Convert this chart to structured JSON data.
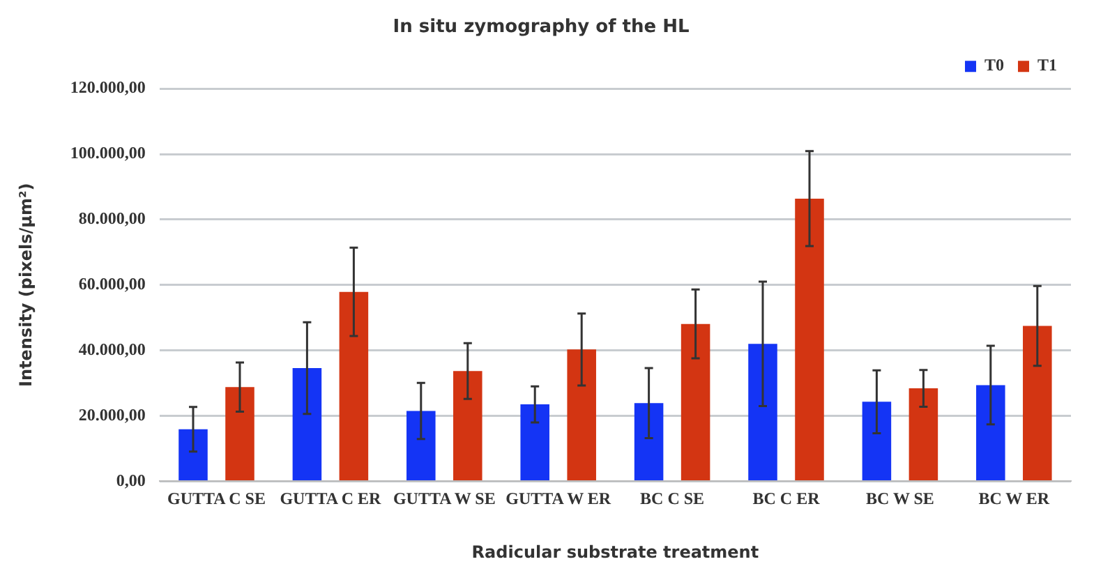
{
  "chart_data": {
    "type": "bar",
    "title": "In situ zymography of the HL",
    "xlabel": "Radicular substrate treatment",
    "ylabel": "Intensity (pixels/µm²)",
    "categories": [
      "GUTTA C SE",
      "GUTTA C ER",
      "GUTTA W SE",
      "GUTTA W ER",
      "BC C SE",
      "BC C ER",
      "BC W SE",
      "BC W ER"
    ],
    "series": [
      {
        "name": "T0",
        "color": "#1434f5",
        "values": [
          15900,
          34600,
          21500,
          23500,
          23900,
          42000,
          24300,
          29400
        ],
        "errors": [
          6800,
          14000,
          8600,
          5500,
          10700,
          19000,
          9600,
          12000
        ]
      },
      {
        "name": "T1",
        "color": "#d33512",
        "values": [
          28800,
          57900,
          33700,
          40300,
          48100,
          86400,
          28400,
          47500
        ],
        "errors": [
          7500,
          13500,
          8500,
          11000,
          10500,
          14500,
          5600,
          12200
        ]
      }
    ],
    "ylim": [
      0,
      120000
    ],
    "yticks": [
      {
        "value": 0,
        "label": "0,00"
      },
      {
        "value": 20000,
        "label": "20.000,00"
      },
      {
        "value": 40000,
        "label": "40.000,00"
      },
      {
        "value": 60000,
        "label": "60.000,00"
      },
      {
        "value": 80000,
        "label": "80.000,00"
      },
      {
        "value": 100000,
        "label": "100.000,00"
      },
      {
        "value": 120000,
        "label": "120.000,00"
      }
    ],
    "grid": "y",
    "legend": "top right"
  }
}
